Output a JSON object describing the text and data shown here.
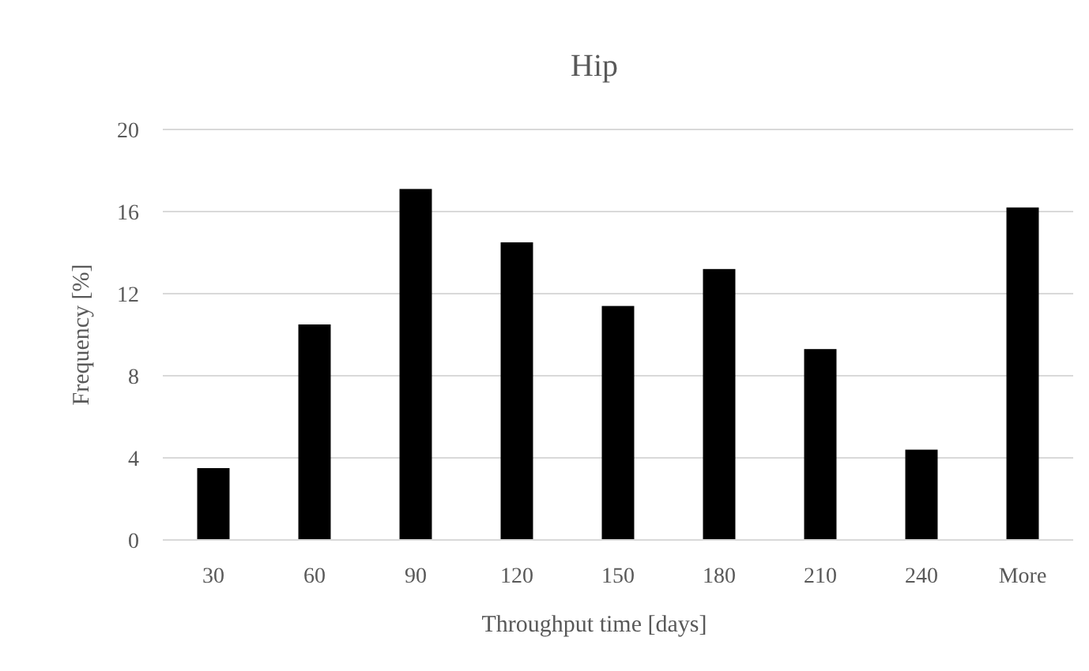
{
  "chart_data": {
    "type": "bar",
    "title": "Hip",
    "xlabel": "Throughput time [days]",
    "ylabel": "Frequency [%]",
    "categories": [
      "30",
      "60",
      "90",
      "120",
      "150",
      "180",
      "210",
      "240",
      "More"
    ],
    "values": [
      3.5,
      10.5,
      17.1,
      14.5,
      11.4,
      13.2,
      9.3,
      4.4,
      16.2
    ],
    "color": "#000000",
    "ylim": [
      0,
      20
    ],
    "yticks": [
      0,
      4,
      8,
      12,
      16,
      20
    ],
    "grid": "y"
  }
}
